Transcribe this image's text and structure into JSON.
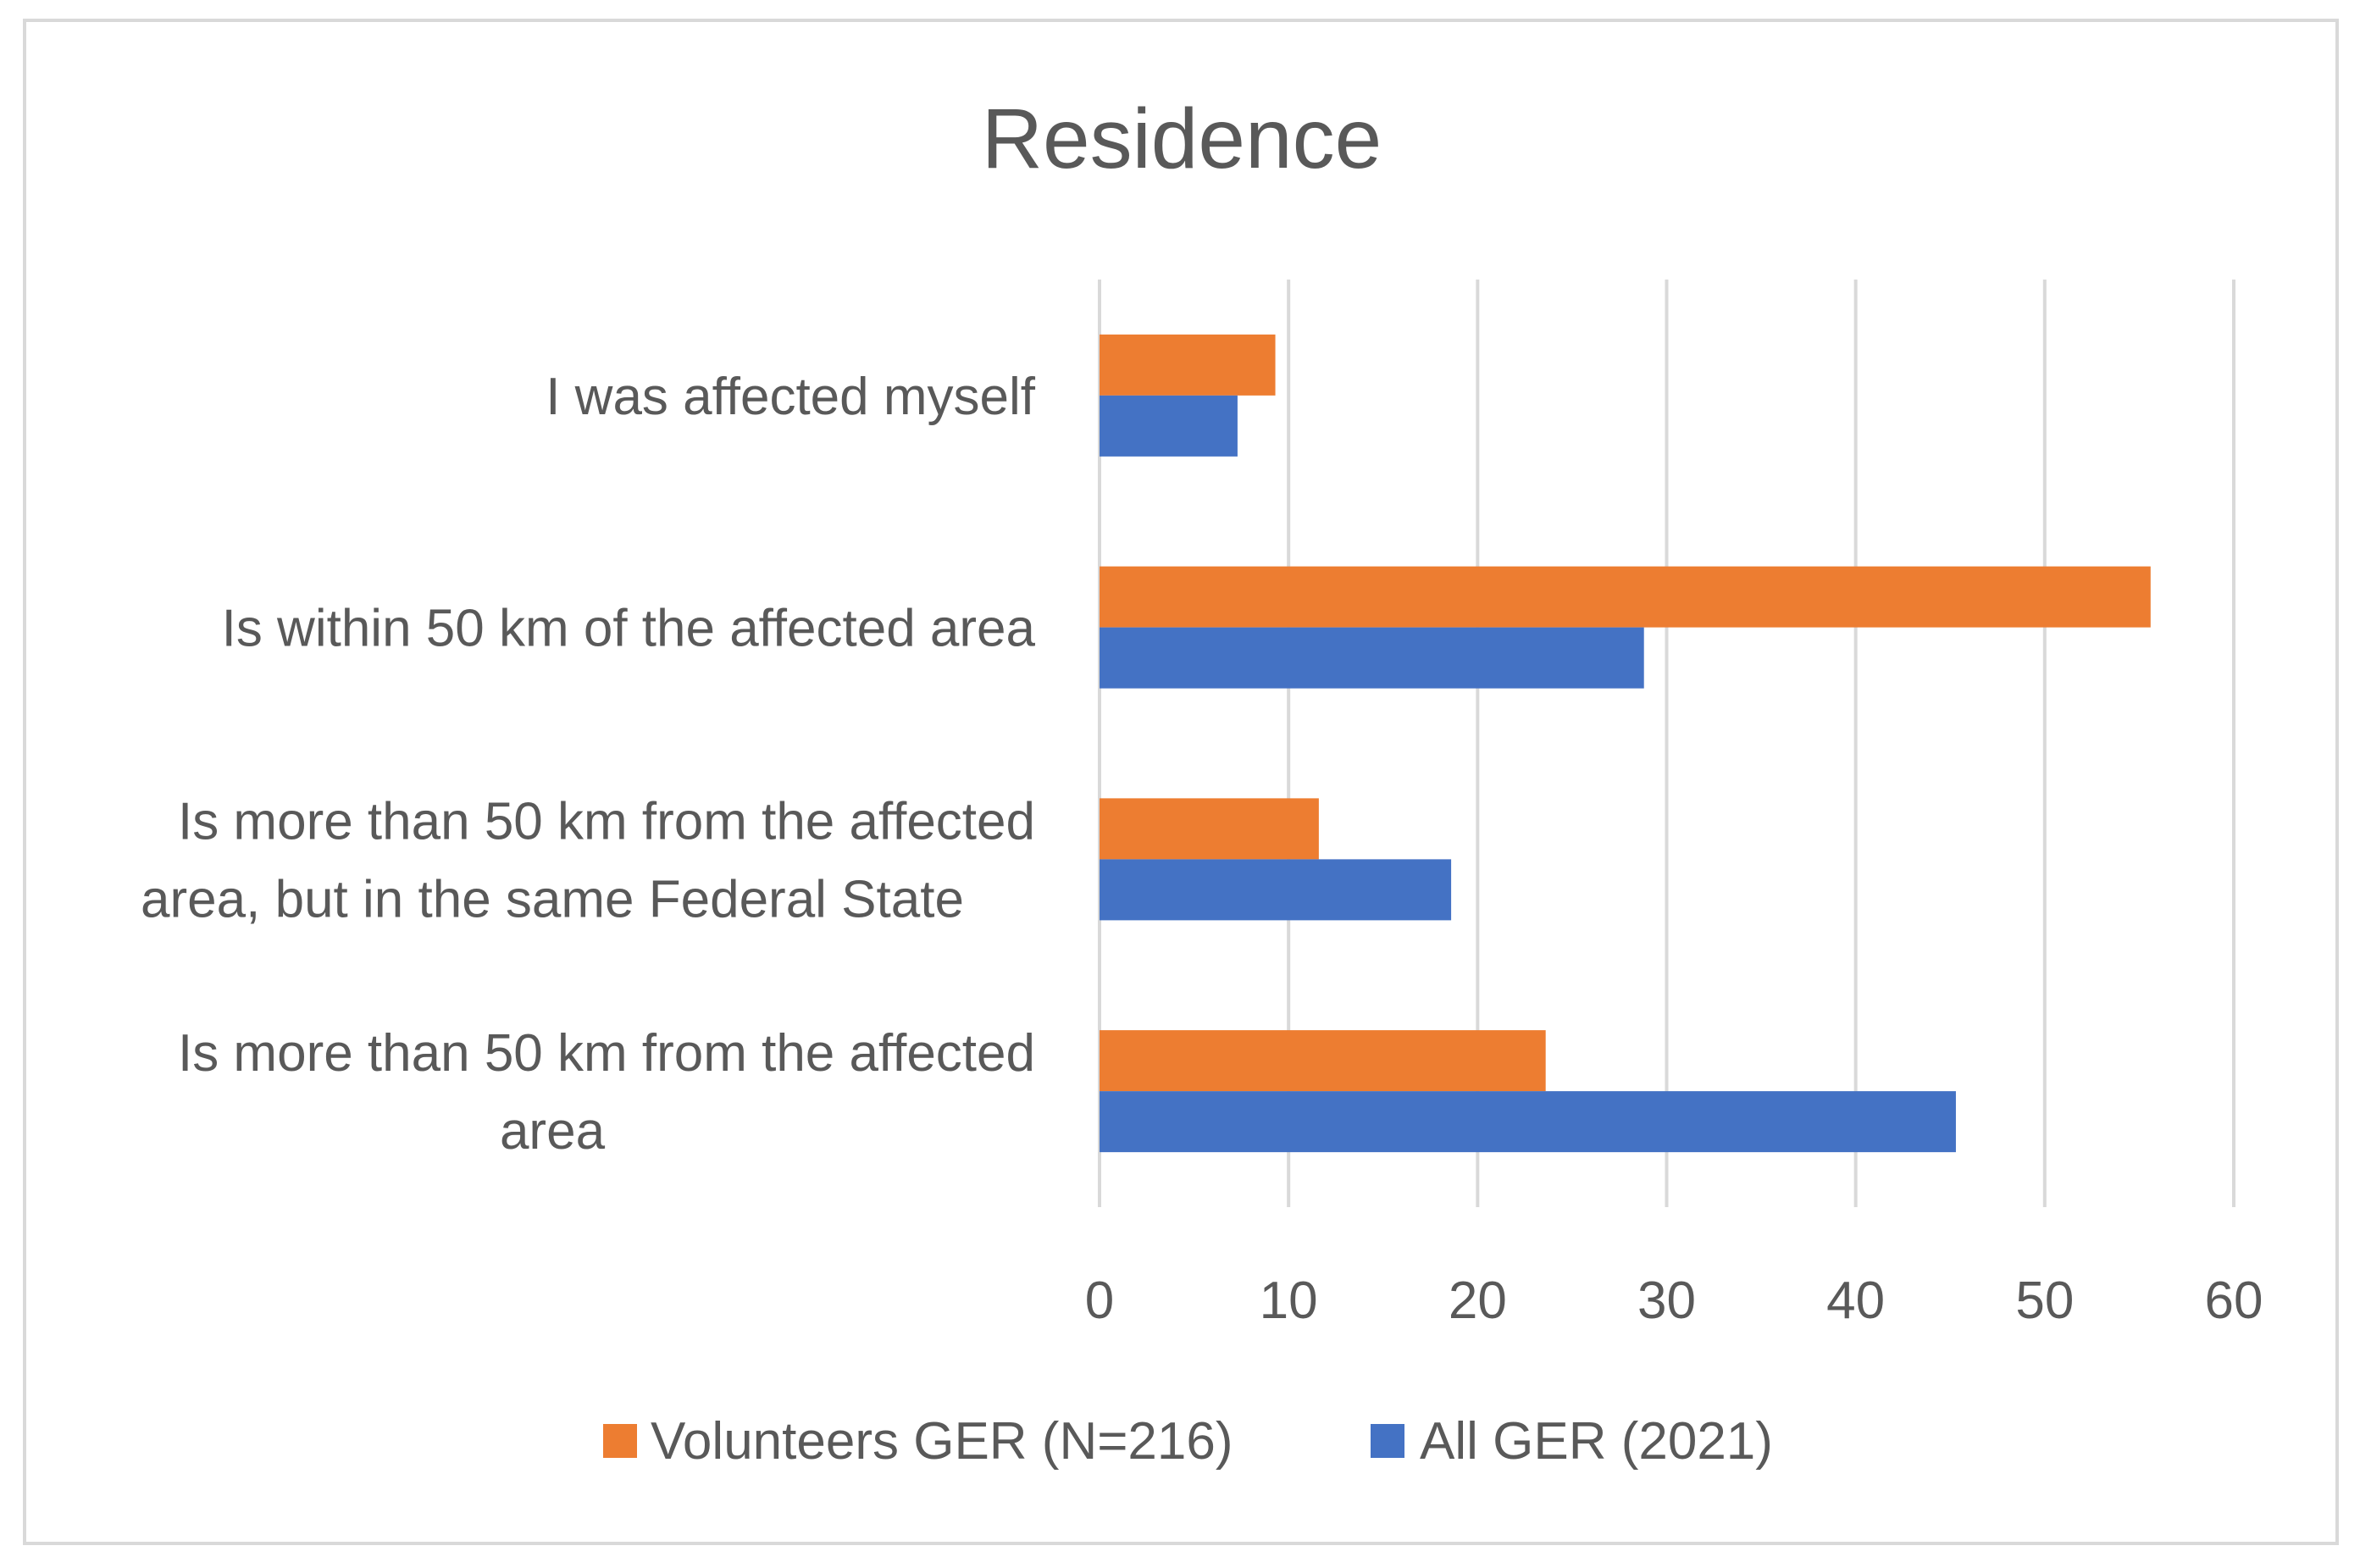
{
  "chart_data": {
    "type": "bar",
    "orientation": "horizontal",
    "title": "Residence",
    "categories": [
      [
        "I was affected myself"
      ],
      [
        "Is within 50 km of the affected area"
      ],
      [
        "Is more than 50 km from the affected",
        "area, but in the same Federal State"
      ],
      [
        "Is more than 50 km from the affected",
        "area"
      ]
    ],
    "series": [
      {
        "name": "Volunteers GER (N=216)",
        "color": "#ED7D31",
        "values": [
          9.3,
          55.6,
          11.6,
          23.6
        ]
      },
      {
        "name": "All GER (2021)",
        "color": "#4472C4",
        "values": [
          7.3,
          28.8,
          18.6,
          45.3
        ]
      }
    ],
    "xlim": [
      0,
      60
    ],
    "xticks": [
      0,
      10,
      20,
      30,
      40,
      50,
      60
    ],
    "grid": true,
    "legend_position": "bottom"
  }
}
